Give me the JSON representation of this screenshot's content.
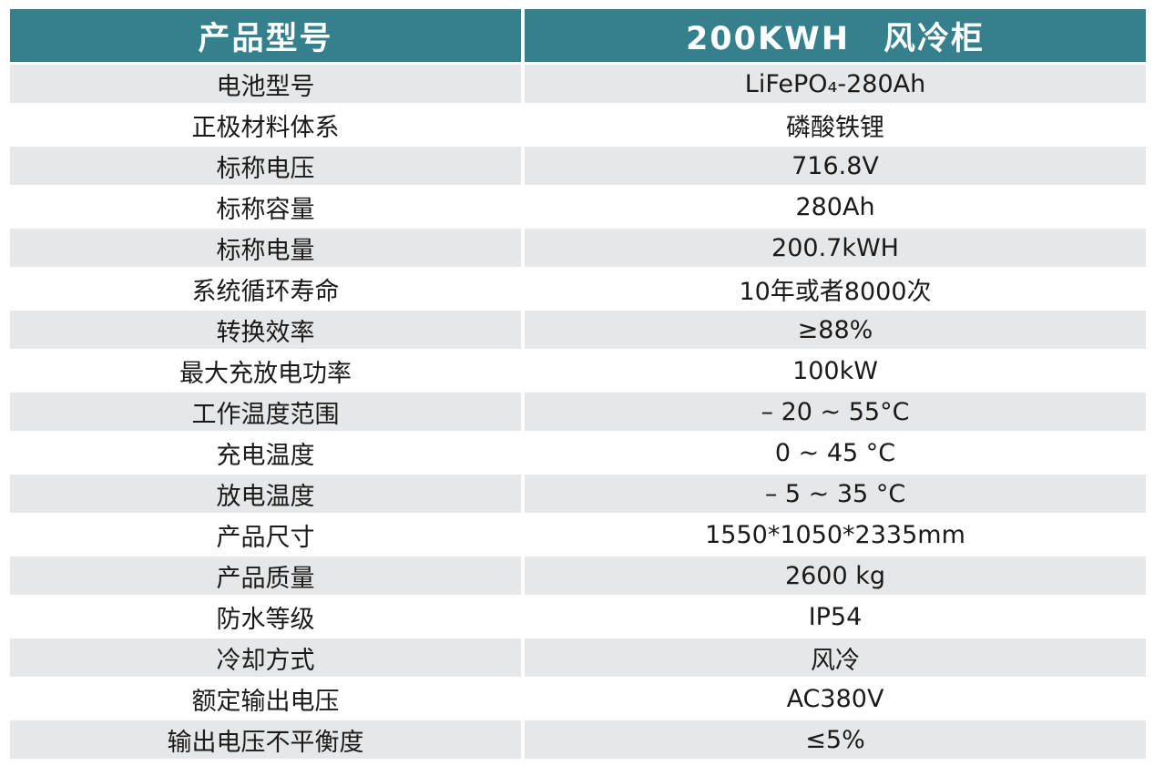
{
  "table": {
    "header": {
      "col1": "产品型号",
      "col2": "200KWH　风冷柜"
    },
    "rows": [
      {
        "label": "电池型号",
        "value": "LiFePO₄-280Ah"
      },
      {
        "label": "正极材料体系",
        "value": "磷酸铁锂"
      },
      {
        "label": "标称电压",
        "value": "716.8V"
      },
      {
        "label": "标称容量",
        "value": "280Ah"
      },
      {
        "label": "标称电量",
        "value": "200.7kWH"
      },
      {
        "label": "系统循环寿命",
        "value": "10年或者8000次"
      },
      {
        "label": "转换效率",
        "value": "≥88%"
      },
      {
        "label": "最大充放电功率",
        "value": "100kW"
      },
      {
        "label": "工作温度范围",
        "value": "– 20 ~ 55°C"
      },
      {
        "label": "充电温度",
        "value": "0 ~ 45 °C"
      },
      {
        "label": "放电温度",
        "value": "– 5 ~ 35 °C"
      },
      {
        "label": "产品尺寸",
        "value": "1550*1050*2335mm"
      },
      {
        "label": "产品质量",
        "value": "2600 kg"
      },
      {
        "label": "防水等级",
        "value": "IP54"
      },
      {
        "label": "冷却方式",
        "value": "风冷"
      },
      {
        "label": "额定输出电压",
        "value": "AC380V"
      },
      {
        "label": "输出电压不平衡度",
        "value": "≤5%"
      }
    ]
  },
  "colors": {
    "header_bg": "#35808D",
    "header_text": "#FFFFFF",
    "stripe_bg": "#E6E7E8",
    "row_bg": "#FFFFFF",
    "body_text": "#1A1A1A"
  }
}
